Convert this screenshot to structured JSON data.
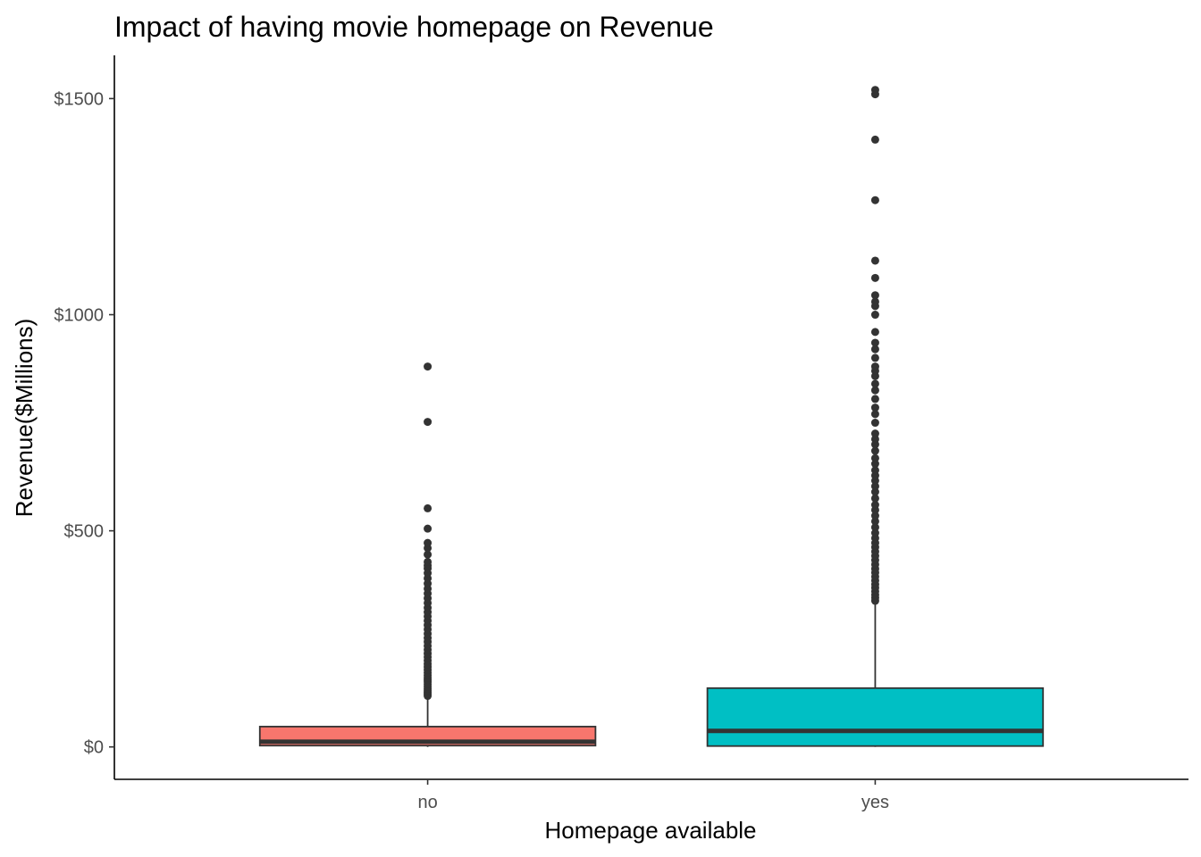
{
  "chart_data": {
    "type": "boxplot",
    "title": "Impact of having movie homepage on Revenue",
    "xlabel": "Homepage available",
    "ylabel": "Revenue($Millions)",
    "categories": [
      "no",
      "yes"
    ],
    "y_ticks": [
      0,
      500,
      1000,
      1500
    ],
    "y_tick_labels": [
      "$0",
      "$500",
      "$1000",
      "$1500"
    ],
    "ylim": [
      -75,
      1600
    ],
    "grid": false,
    "legend": "none",
    "boxes": [
      {
        "category": "no",
        "fill": "#F8766D",
        "min": 0,
        "q1": 3,
        "median": 12,
        "q3": 47,
        "whisker_high": 113,
        "outliers": [
          118,
          122,
          126,
          130,
          135,
          140,
          145,
          150,
          155,
          160,
          166,
          172,
          178,
          185,
          192,
          200,
          208,
          216,
          225,
          234,
          243,
          252,
          262,
          272,
          282,
          292,
          302,
          312,
          322,
          333,
          344,
          355,
          366,
          378,
          390,
          402,
          413,
          420,
          428,
          445,
          460,
          472,
          505,
          552,
          752,
          880
        ]
      },
      {
        "category": "yes",
        "fill": "#00BFC4",
        "min": 0,
        "q1": 2,
        "median": 37,
        "q3": 136,
        "whisker_high": 333,
        "outliers": [
          338,
          345,
          352,
          360,
          368,
          376,
          385,
          394,
          403,
          412,
          422,
          432,
          442,
          452,
          462,
          472,
          483,
          495,
          508,
          522,
          535,
          548,
          560,
          575,
          590,
          603,
          616,
          628,
          640,
          655,
          668,
          685,
          700,
          712,
          725,
          750,
          770,
          785,
          805,
          825,
          840,
          858,
          870,
          880,
          900,
          920,
          935,
          960,
          1000,
          1020,
          1030,
          1045,
          1085,
          1125,
          1265,
          1405,
          1510,
          1520
        ]
      }
    ]
  }
}
